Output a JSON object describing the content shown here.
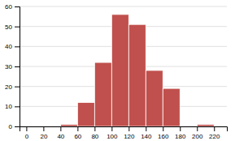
{
  "chart_data": {
    "type": "histogram",
    "bins": [
      0,
      20,
      40,
      60,
      80,
      100,
      120,
      140,
      160,
      180,
      200,
      220
    ],
    "values": [
      0,
      0,
      1,
      12,
      32,
      56,
      51,
      28,
      19,
      0,
      1
    ],
    "color": "#c0504d",
    "xlim": [
      -8,
      235
    ],
    "xticks": [
      0,
      20,
      40,
      60,
      80,
      100,
      120,
      140,
      160,
      180,
      200,
      220
    ],
    "ylim": [
      0,
      60
    ],
    "yticks": [
      0,
      10,
      20,
      30,
      40,
      50,
      60
    ],
    "grid": true
  }
}
